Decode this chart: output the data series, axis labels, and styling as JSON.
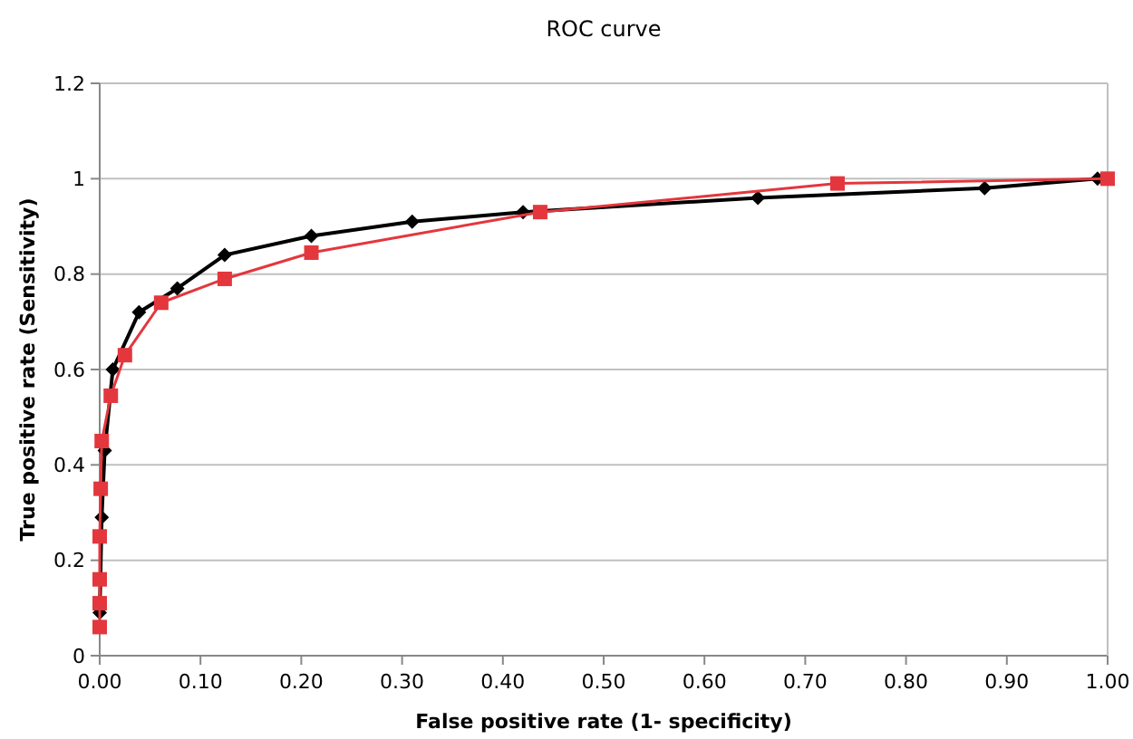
{
  "chart_data": {
    "type": "line",
    "title": "ROC curve",
    "xlabel": "False positive rate (1- specificity)",
    "ylabel": "True positive rate (Sensitivity)",
    "xlim": [
      0,
      1
    ],
    "ylim": [
      0,
      1.2
    ],
    "xticks": [
      {
        "value": 0,
        "label": "0.00"
      },
      {
        "value": 0.1,
        "label": "0.10"
      },
      {
        "value": 0.2,
        "label": "0.20"
      },
      {
        "value": 0.3,
        "label": "0.30"
      },
      {
        "value": 0.4,
        "label": "0.40"
      },
      {
        "value": 0.5,
        "label": "0.50"
      },
      {
        "value": 0.6,
        "label": "0.60"
      },
      {
        "value": 0.7,
        "label": "0.70"
      },
      {
        "value": 0.8,
        "label": "0.80"
      },
      {
        "value": 0.9,
        "label": "0.90"
      },
      {
        "value": 1,
        "label": "1.00"
      }
    ],
    "yticks": [
      0,
      0.2,
      0.4,
      0.6,
      0.8,
      1,
      1.2
    ],
    "grid": "y",
    "series": [
      {
        "color": "#000000",
        "marker": "diamond",
        "x": [
          0,
          0.002,
          0.005,
          0.013,
          0.039,
          0.077,
          0.124,
          0.21,
          0.31,
          0.42,
          0.653,
          0.878,
          0.99
        ],
        "values": [
          0.09,
          0.29,
          0.43,
          0.6,
          0.72,
          0.77,
          0.84,
          0.88,
          0.91,
          0.93,
          0.96,
          0.98,
          1.0
        ]
      },
      {
        "color": "#e3373d",
        "marker": "square",
        "x": [
          0,
          0,
          0,
          0,
          0.001,
          0.002,
          0.011,
          0.025,
          0.061,
          0.124,
          0.21,
          0.437,
          0.732,
          1.0
        ],
        "values": [
          0.06,
          0.11,
          0.16,
          0.25,
          0.35,
          0.45,
          0.545,
          0.63,
          0.74,
          0.79,
          0.845,
          0.93,
          0.99,
          1.0
        ]
      }
    ]
  }
}
